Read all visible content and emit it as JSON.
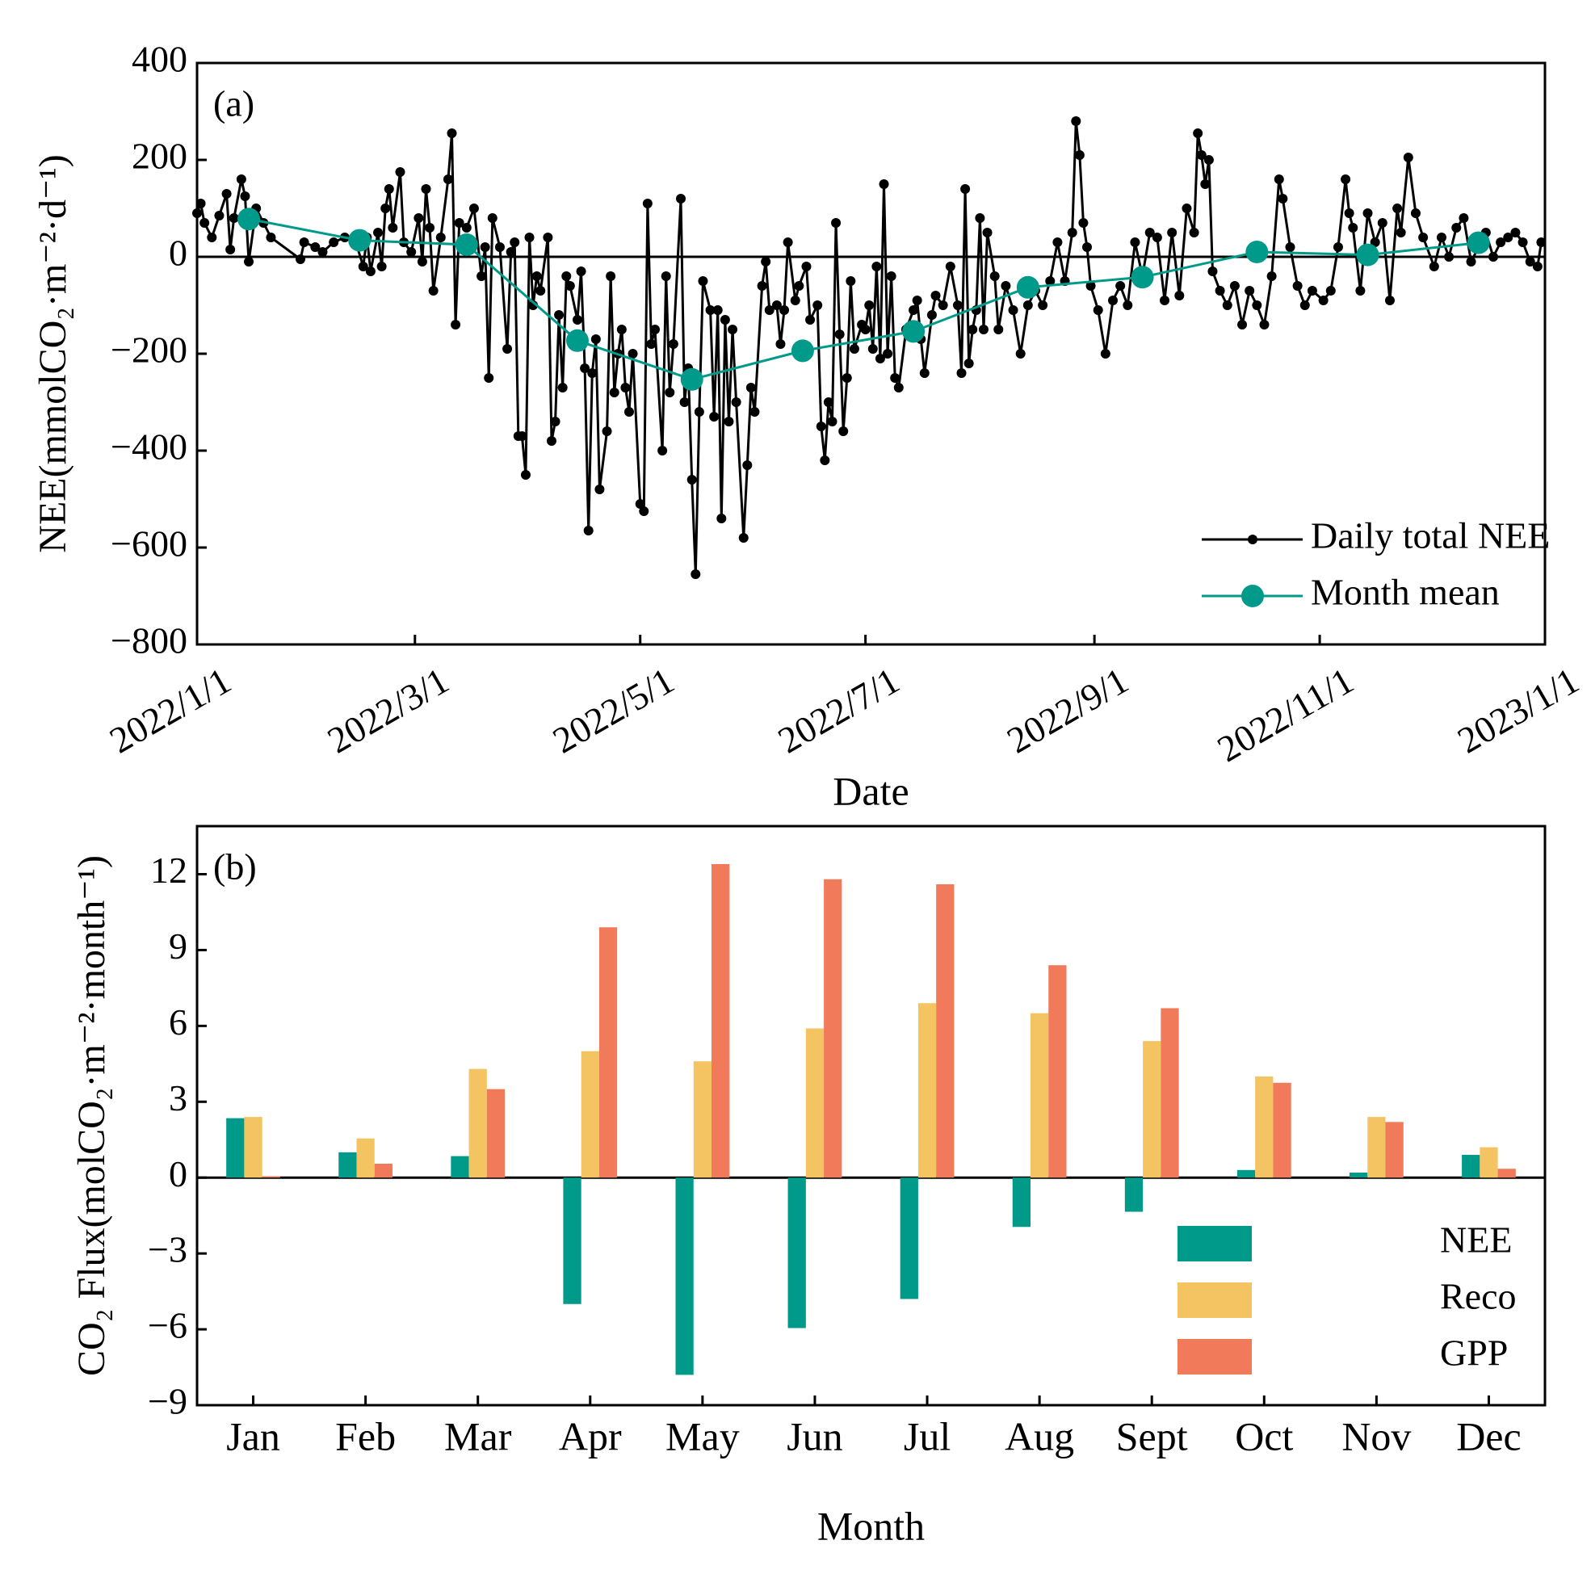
{
  "chart_data": [
    {
      "type": "line",
      "label": "(a)",
      "xlabel": "Date",
      "ylabel": "NEE(mmolCO₂·m⁻²·d⁻¹)",
      "xlim": [
        "2022/1/1",
        "2023/1/1"
      ],
      "xticks": [
        "2022/1/1",
        "2022/3/1",
        "2022/5/1",
        "2022/7/1",
        "2022/9/1",
        "2022/11/1",
        "2023/1/1"
      ],
      "ylim": [
        -800,
        400
      ],
      "yticks": [
        {
          "value": -800,
          "label": "−800"
        },
        {
          "value": -600,
          "label": "−600"
        },
        {
          "value": -400,
          "label": "−400"
        },
        {
          "value": -200,
          "label": "−200"
        },
        0,
        200,
        400
      ],
      "legend": "lower right",
      "series": [
        {
          "name": "Daily total NEE",
          "color": "#000000",
          "x": [
            "2022/1/1",
            "2022/1/2",
            "2022/1/3",
            "2022/1/5",
            "2022/1/7",
            "2022/1/9",
            "2022/1/10",
            "2022/1/11",
            "2022/1/13",
            "2022/1/14",
            "2022/1/15",
            "2022/1/17",
            "2022/1/19",
            "2022/1/21",
            "2022/1/29",
            "2022/1/30",
            "2022/2/2",
            "2022/2/4",
            "2022/2/7",
            "2022/2/10",
            "2022/2/13",
            "2022/2/15",
            "2022/2/16",
            "2022/2/17",
            "2022/2/19",
            "2022/2/20",
            "2022/2/21",
            "2022/2/22",
            "2022/2/23",
            "2022/2/25",
            "2022/2/26",
            "2022/2/28",
            "2022/3/2",
            "2022/3/3",
            "2022/3/4",
            "2022/3/5",
            "2022/3/6",
            "2022/3/8",
            "2022/3/10",
            "2022/3/11",
            "2022/3/12",
            "2022/3/13",
            "2022/3/15",
            "2022/3/17",
            "2022/3/19",
            "2022/3/20",
            "2022/3/21",
            "2022/3/22",
            "2022/3/24",
            "2022/3/26",
            "2022/3/27",
            "2022/3/28",
            "2022/3/29",
            "2022/3/30",
            "2022/3/31",
            "2022/4/1",
            "2022/4/2",
            "2022/4/3",
            "2022/4/4",
            "2022/4/6",
            "2022/4/7",
            "2022/4/8",
            "2022/4/9",
            "2022/4/10",
            "2022/4/11",
            "2022/4/12",
            "2022/4/14",
            "2022/4/15",
            "2022/4/16",
            "2022/4/17",
            "2022/4/18",
            "2022/4/19",
            "2022/4/20",
            "2022/4/22",
            "2022/4/23",
            "2022/4/24",
            "2022/4/25",
            "2022/4/26",
            "2022/4/27",
            "2022/4/28",
            "2022/4/29",
            "2022/5/1",
            "2022/5/2",
            "2022/5/3",
            "2022/5/4",
            "2022/5/5",
            "2022/5/7",
            "2022/5/8",
            "2022/5/9",
            "2022/5/10",
            "2022/5/12",
            "2022/5/13",
            "2022/5/14",
            "2022/5/15",
            "2022/5/16",
            "2022/5/17",
            "2022/5/18",
            "2022/5/20",
            "2022/5/21",
            "2022/5/22",
            "2022/5/23",
            "2022/5/24",
            "2022/5/25",
            "2022/5/26",
            "2022/5/27",
            "2022/5/29",
            "2022/5/30",
            "2022/5/31",
            "2022/6/1",
            "2022/6/3",
            "2022/6/4",
            "2022/6/5",
            "2022/6/7",
            "2022/6/8",
            "2022/6/9",
            "2022/6/10",
            "2022/6/12",
            "2022/6/13",
            "2022/6/15",
            "2022/6/16",
            "2022/6/18",
            "2022/6/19",
            "2022/6/20",
            "2022/6/21",
            "2022/6/22",
            "2022/6/23",
            "2022/6/24",
            "2022/6/25",
            "2022/6/26",
            "2022/6/27",
            "2022/6/28",
            "2022/6/30",
            "2022/7/1",
            "2022/7/2",
            "2022/7/3",
            "2022/7/4",
            "2022/7/5",
            "2022/7/6",
            "2022/7/7",
            "2022/7/8",
            "2022/7/9",
            "2022/7/10",
            "2022/7/12",
            "2022/7/14",
            "2022/7/15",
            "2022/7/16",
            "2022/7/17",
            "2022/7/19",
            "2022/7/20",
            "2022/7/22",
            "2022/7/24",
            "2022/7/26",
            "2022/7/27",
            "2022/7/28",
            "2022/7/29",
            "2022/7/30",
            "2022/7/31",
            "2022/8/1",
            "2022/8/2",
            "2022/8/3",
            "2022/8/5",
            "2022/8/6",
            "2022/8/8",
            "2022/8/10",
            "2022/8/12",
            "2022/8/14",
            "2022/8/16",
            "2022/8/18",
            "2022/8/20",
            "2022/8/22",
            "2022/8/24",
            "2022/8/26",
            "2022/8/27",
            "2022/8/28",
            "2022/8/29",
            "2022/8/30",
            "2022/8/31",
            "2022/9/2",
            "2022/9/4",
            "2022/9/6",
            "2022/9/8",
            "2022/9/10",
            "2022/9/12",
            "2022/9/14",
            "2022/9/16",
            "2022/9/18",
            "2022/9/20",
            "2022/9/22",
            "2022/9/24",
            "2022/9/26",
            "2022/9/28",
            "2022/9/29",
            "2022/9/30",
            "2022/10/1",
            "2022/10/2",
            "2022/10/3",
            "2022/10/5",
            "2022/10/7",
            "2022/10/9",
            "2022/10/11",
            "2022/10/13",
            "2022/10/15",
            "2022/10/17",
            "2022/10/19",
            "2022/10/21",
            "2022/10/22",
            "2022/10/24",
            "2022/10/26",
            "2022/10/28",
            "2022/10/30",
            "2022/11/2",
            "2022/11/4",
            "2022/11/6",
            "2022/11/8",
            "2022/11/9",
            "2022/11/10",
            "2022/11/12",
            "2022/11/14",
            "2022/11/16",
            "2022/11/18",
            "2022/11/20",
            "2022/11/22",
            "2022/11/23",
            "2022/11/25",
            "2022/11/27",
            "2022/11/29",
            "2022/12/2",
            "2022/12/4",
            "2022/12/6",
            "2022/12/8",
            "2022/12/10",
            "2022/12/12",
            "2022/12/14",
            "2022/12/16",
            "2022/12/18",
            "2022/12/20",
            "2022/12/22",
            "2022/12/24",
            "2022/12/26",
            "2022/12/28",
            "2022/12/30",
            "2022/12/31"
          ],
          "values": [
            90,
            110,
            70,
            40,
            85,
            130,
            15,
            80,
            160,
            125,
            -10,
            100,
            70,
            40,
            -5,
            30,
            20,
            10,
            30,
            40,
            30,
            -20,
            40,
            -30,
            50,
            -20,
            100,
            140,
            60,
            175,
            30,
            10,
            80,
            -10,
            140,
            60,
            -70,
            40,
            160,
            255,
            -140,
            70,
            60,
            100,
            -40,
            20,
            -250,
            80,
            20,
            -190,
            10,
            30,
            -370,
            -370,
            -450,
            40,
            -100,
            -40,
            -70,
            40,
            -380,
            -340,
            -120,
            -270,
            -40,
            -60,
            -130,
            -30,
            -230,
            -565,
            -240,
            -170,
            -480,
            -360,
            -40,
            -280,
            -200,
            -150,
            -270,
            -320,
            -200,
            -510,
            -525,
            110,
            -180,
            -150,
            -400,
            -40,
            -280,
            -180,
            120,
            -300,
            -230,
            -460,
            -655,
            -320,
            -50,
            -110,
            -330,
            -110,
            -540,
            -130,
            -340,
            -150,
            -300,
            -580,
            -430,
            -270,
            -320,
            -60,
            -10,
            -110,
            -100,
            -180,
            -110,
            30,
            -90,
            -60,
            -20,
            -130,
            -100,
            -350,
            -420,
            -300,
            -340,
            70,
            -160,
            -360,
            -250,
            -50,
            -190,
            -140,
            -150,
            -100,
            -190,
            -20,
            -210,
            150,
            -200,
            -40,
            -250,
            -270,
            -150,
            -110,
            -90,
            -170,
            -240,
            -120,
            -80,
            -100,
            -20,
            -100,
            -240,
            140,
            -220,
            -150,
            -110,
            80,
            -150,
            50,
            -40,
            -150,
            -60,
            -110,
            -200,
            -100,
            -70,
            -100,
            -50,
            30,
            -50,
            50,
            280,
            210,
            70,
            20,
            -60,
            -110,
            -200,
            -90,
            -60,
            -100,
            30,
            -40,
            50,
            40,
            -90,
            50,
            -80,
            100,
            50,
            255,
            210,
            150,
            200,
            -30,
            -70,
            -100,
            -60,
            -140,
            -70,
            -100,
            -140,
            -40,
            160,
            120,
            20,
            -60,
            -100,
            -70,
            -90,
            -70,
            20,
            160,
            90,
            60,
            -70,
            90,
            30,
            70,
            -90,
            100,
            50,
            205,
            90,
            40,
            -20,
            40,
            0,
            60,
            80,
            -10,
            20,
            50,
            0,
            30,
            40,
            50,
            30,
            -10,
            -20,
            30
          ]
        },
        {
          "name": "Month mean",
          "color": "#009a8a",
          "x": [
            "2022/1/15",
            "2022/2/14",
            "2022/3/15",
            "2022/4/14",
            "2022/5/15",
            "2022/6/14",
            "2022/7/14",
            "2022/8/14",
            "2022/9/14",
            "2022/10/15",
            "2022/11/14",
            "2022/12/14"
          ],
          "values": [
            78,
            34,
            25,
            -173,
            -253,
            -194,
            -154,
            -63,
            -42,
            10,
            4,
            29
          ]
        }
      ]
    },
    {
      "type": "bar",
      "label": "(b)",
      "xlabel": "Month",
      "ylabel": "CO₂ Flux(molCO₂·m⁻²·month⁻¹)",
      "categories": [
        "Jan",
        "Feb",
        "Mar",
        "Apr",
        "May",
        "Jun",
        "Jul",
        "Aug",
        "Sept",
        "Oct",
        "Nov",
        "Dec"
      ],
      "ylim": [
        -9,
        13.9
      ],
      "yticks": [
        {
          "value": -9,
          "label": "−9"
        },
        {
          "value": -6,
          "label": "−6"
        },
        {
          "value": -3,
          "label": "−3"
        },
        0,
        3,
        6,
        9,
        12
      ],
      "legend": "lower right",
      "series": [
        {
          "name": "NEE",
          "color": "#009a8a",
          "values": [
            2.35,
            1.0,
            0.85,
            -5.0,
            -7.8,
            -5.95,
            -4.8,
            -1.95,
            -1.35,
            0.3,
            0.2,
            0.9
          ]
        },
        {
          "name": "Reco",
          "color": "#f5c462",
          "values": [
            2.4,
            1.55,
            4.3,
            5.0,
            4.6,
            5.9,
            6.9,
            6.5,
            5.4,
            4.0,
            2.4,
            1.2
          ]
        },
        {
          "name": "GPP",
          "color": "#f07a5a",
          "values": [
            0.05,
            0.55,
            3.5,
            9.9,
            12.4,
            11.8,
            11.6,
            8.4,
            6.7,
            3.75,
            2.2,
            0.35
          ]
        }
      ]
    }
  ]
}
